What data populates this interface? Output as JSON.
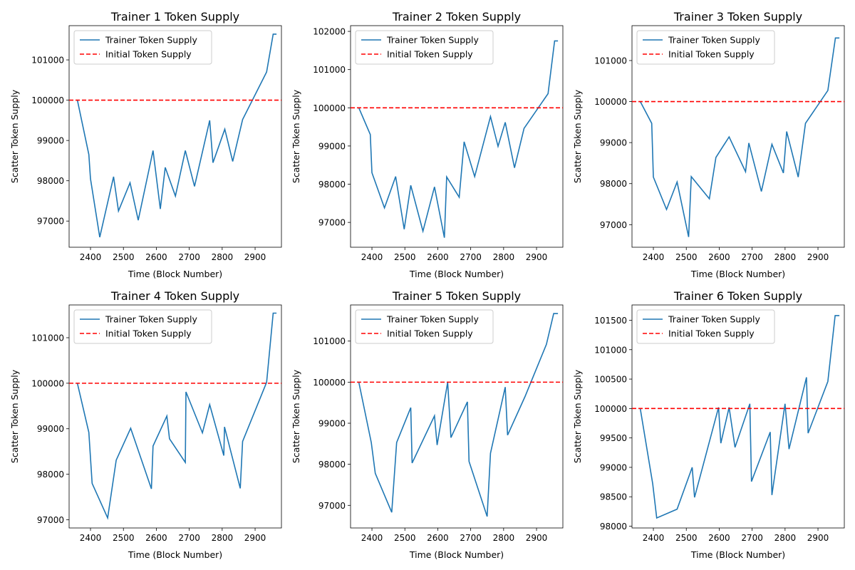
{
  "chart_data": [
    {
      "type": "line",
      "title": "Trainer 1 Token Supply",
      "xlabel": "Time (Block Number)",
      "ylabel": "Scatter Token Supply",
      "xlim": [
        2335,
        2980
      ],
      "ylim": [
        96350,
        101850
      ],
      "xticks": [
        2400,
        2500,
        2600,
        2700,
        2800,
        2900
      ],
      "yticks": [
        97000,
        98000,
        99000,
        100000,
        101000
      ],
      "ytick_labels": [
        "97000",
        "98000",
        "99000",
        "100000",
        "101000"
      ],
      "legend": {
        "position": "top-left",
        "entries": [
          "Trainer Token Supply",
          "Initial Token Supply"
        ]
      },
      "series": [
        {
          "name": "Trainer Token Supply",
          "color": "#1f77b4",
          "x": [
            2360,
            2395,
            2400,
            2428,
            2470,
            2485,
            2520,
            2545,
            2590,
            2612,
            2627,
            2658,
            2688,
            2716,
            2762,
            2772,
            2808,
            2832,
            2862,
            2935,
            2955,
            2965
          ],
          "y": [
            100000,
            98650,
            98050,
            96600,
            98100,
            97250,
            97950,
            97020,
            98750,
            97300,
            98330,
            97620,
            98750,
            97860,
            99500,
            98450,
            99280,
            98480,
            99520,
            100700,
            101640,
            101640
          ]
        },
        {
          "name": "Initial Token Supply",
          "color": "#ff0000",
          "style": "dashed",
          "y_const": 100000
        }
      ]
    },
    {
      "type": "line",
      "title": "Trainer 2 Token Supply",
      "xlabel": "Time (Block Number)",
      "ylabel": "Scatter Token Supply",
      "xlim": [
        2335,
        2980
      ],
      "ylim": [
        96350,
        102150
      ],
      "xticks": [
        2400,
        2500,
        2600,
        2700,
        2800,
        2900
      ],
      "yticks": [
        97000,
        98000,
        99000,
        100000,
        101000,
        102000
      ],
      "ytick_labels": [
        "97000",
        "98000",
        "99000",
        "100000",
        "101000",
        "102000"
      ],
      "legend": {
        "position": "top-left",
        "entries": [
          "Trainer Token Supply",
          "Initial Token Supply"
        ]
      },
      "series": [
        {
          "name": "Trainer Token Supply",
          "color": "#1f77b4",
          "x": [
            2360,
            2395,
            2400,
            2438,
            2472,
            2498,
            2518,
            2555,
            2590,
            2620,
            2627,
            2665,
            2680,
            2712,
            2760,
            2783,
            2805,
            2833,
            2862,
            2935,
            2955,
            2965
          ],
          "y": [
            100000,
            99300,
            98300,
            97380,
            98200,
            96820,
            97970,
            96770,
            97930,
            96600,
            98190,
            97660,
            99110,
            98200,
            99770,
            98990,
            99620,
            98430,
            99460,
            100370,
            101750,
            101750
          ]
        },
        {
          "name": "Initial Token Supply",
          "color": "#ff0000",
          "style": "dashed",
          "y_const": 100000
        }
      ]
    },
    {
      "type": "line",
      "title": "Trainer 3 Token Supply",
      "xlabel": "Time (Block Number)",
      "ylabel": "Scatter Token Supply",
      "xlim": [
        2335,
        2980
      ],
      "ylim": [
        96450,
        101850
      ],
      "xticks": [
        2400,
        2500,
        2600,
        2700,
        2800,
        2900
      ],
      "yticks": [
        97000,
        98000,
        99000,
        100000,
        101000
      ],
      "ytick_labels": [
        "97000",
        "98000",
        "99000",
        "100000",
        "101000"
      ],
      "legend": {
        "position": "top-left",
        "entries": [
          "Trainer Token Supply",
          "Initial Token Supply"
        ]
      },
      "series": [
        {
          "name": "Trainer Token Supply",
          "color": "#1f77b4",
          "x": [
            2360,
            2395,
            2400,
            2440,
            2472,
            2507,
            2515,
            2570,
            2590,
            2630,
            2680,
            2690,
            2728,
            2760,
            2795,
            2805,
            2840,
            2862,
            2930,
            2953,
            2965
          ],
          "y": [
            100000,
            99470,
            98160,
            97370,
            98040,
            96700,
            98170,
            97630,
            98640,
            99140,
            98290,
            98990,
            97810,
            98960,
            98260,
            99270,
            98160,
            99470,
            100270,
            101550,
            101550
          ]
        },
        {
          "name": "Initial Token Supply",
          "color": "#ff0000",
          "style": "dashed",
          "y_const": 100000
        }
      ]
    },
    {
      "type": "line",
      "title": "Trainer 4 Token Supply",
      "xlabel": "Time (Block Number)",
      "ylabel": "Scatter Token Supply",
      "xlim": [
        2335,
        2980
      ],
      "ylim": [
        96820,
        101720
      ],
      "xticks": [
        2400,
        2500,
        2600,
        2700,
        2800,
        2900
      ],
      "yticks": [
        97000,
        98000,
        99000,
        100000,
        101000
      ],
      "ytick_labels": [
        "97000",
        "98000",
        "99000",
        "100000",
        "101000"
      ],
      "legend": {
        "position": "top-left",
        "entries": [
          "Trainer Token Supply",
          "Initial Token Supply"
        ]
      },
      "series": [
        {
          "name": "Trainer Token Supply",
          "color": "#1f77b4",
          "x": [
            2360,
            2395,
            2405,
            2452,
            2478,
            2522,
            2585,
            2590,
            2632,
            2640,
            2688,
            2690,
            2740,
            2762,
            2805,
            2807,
            2855,
            2862,
            2935,
            2955,
            2965
          ],
          "y": [
            100000,
            98920,
            97800,
            97040,
            98310,
            99010,
            97680,
            98620,
            99280,
            98780,
            98260,
            99810,
            98910,
            99530,
            98410,
            99040,
            97690,
            98720,
            100020,
            101540,
            101540
          ]
        },
        {
          "name": "Initial Token Supply",
          "color": "#ff0000",
          "style": "dashed",
          "y_const": 100000
        }
      ]
    },
    {
      "type": "line",
      "title": "Trainer 5 Token Supply",
      "xlabel": "Time (Block Number)",
      "ylabel": "Scatter Token Supply",
      "xlim": [
        2335,
        2980
      ],
      "ylim": [
        96450,
        101880
      ],
      "xticks": [
        2400,
        2500,
        2600,
        2700,
        2800,
        2900
      ],
      "yticks": [
        97000,
        98000,
        99000,
        100000,
        101000
      ],
      "ytick_labels": [
        "97000",
        "98000",
        "99000",
        "100000",
        "101000"
      ],
      "legend": {
        "position": "top-left",
        "entries": [
          "Trainer Token Supply",
          "Initial Token Supply"
        ]
      },
      "series": [
        {
          "name": "Trainer Token Supply",
          "color": "#1f77b4",
          "x": [
            2360,
            2398,
            2410,
            2460,
            2475,
            2518,
            2522,
            2590,
            2598,
            2630,
            2640,
            2690,
            2695,
            2750,
            2760,
            2805,
            2812,
            2865,
            2930,
            2952,
            2965
          ],
          "y": [
            100000,
            98530,
            97780,
            96830,
            98530,
            99380,
            98030,
            99180,
            98470,
            100000,
            98650,
            99520,
            98070,
            96730,
            98270,
            99880,
            98710,
            99650,
            100920,
            101670,
            101670
          ]
        },
        {
          "name": "Initial Token Supply",
          "color": "#ff0000",
          "style": "dashed",
          "y_const": 100000
        }
      ]
    },
    {
      "type": "line",
      "title": "Trainer 6 Token Supply",
      "xlabel": "Time (Block Number)",
      "ylabel": "Scatter Token Supply",
      "xlim": [
        2335,
        2980
      ],
      "ylim": [
        97970,
        101760
      ],
      "xticks": [
        2400,
        2500,
        2600,
        2700,
        2800,
        2900
      ],
      "yticks": [
        98000,
        98500,
        99000,
        99500,
        100000,
        100500,
        101000,
        101500
      ],
      "ytick_labels": [
        "98000",
        "98500",
        "99000",
        "99500",
        "100000",
        "100500",
        "101000",
        "101500"
      ],
      "legend": {
        "position": "top-left",
        "entries": [
          "Trainer Token Supply",
          "Initial Token Supply"
        ]
      },
      "series": [
        {
          "name": "Trainer Token Supply",
          "color": "#1f77b4",
          "x": [
            2360,
            2398,
            2410,
            2472,
            2518,
            2525,
            2598,
            2605,
            2630,
            2648,
            2693,
            2698,
            2755,
            2760,
            2800,
            2812,
            2865,
            2870,
            2930,
            2952,
            2965
          ],
          "y": [
            100000,
            98720,
            98140,
            98290,
            99000,
            98490,
            100020,
            99410,
            100020,
            99340,
            100080,
            98760,
            99600,
            98530,
            100080,
            99310,
            100530,
            99580,
            100460,
            101580,
            101580
          ]
        },
        {
          "name": "Initial Token Supply",
          "color": "#ff0000",
          "style": "dashed",
          "y_const": 100000
        }
      ]
    }
  ]
}
